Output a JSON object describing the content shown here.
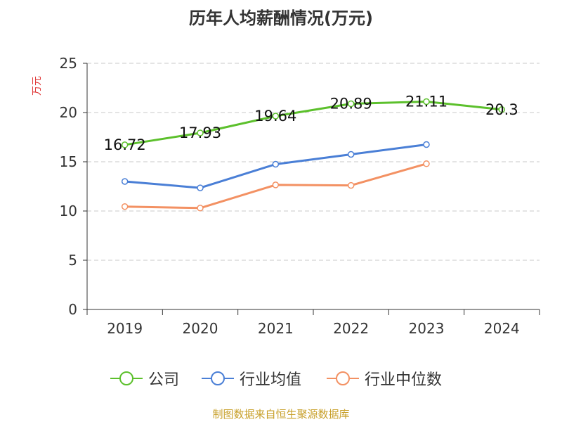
{
  "chart_data": {
    "type": "line",
    "title": "历年人均薪酬情况(万元)",
    "ylabel": "万元",
    "xlabel": "",
    "ylim": [
      0,
      25
    ],
    "yticks": [
      0,
      5,
      10,
      15,
      20,
      25
    ],
    "grid": true,
    "legend_position": "bottom",
    "categories": [
      "2019",
      "2020",
      "2021",
      "2022",
      "2023",
      "2024"
    ],
    "series": [
      {
        "name": "公司",
        "color": "#5cc02c",
        "values": [
          16.72,
          17.93,
          19.64,
          20.89,
          21.11,
          20.3
        ],
        "show_labels": true
      },
      {
        "name": "行业均值",
        "color": "#4a7fd6",
        "values": [
          13.0,
          12.35,
          14.75,
          15.75,
          16.75,
          null
        ],
        "show_labels": false
      },
      {
        "name": "行业中位数",
        "color": "#f39163",
        "values": [
          10.45,
          10.3,
          12.65,
          12.6,
          14.8,
          null
        ],
        "show_labels": false
      }
    ]
  },
  "footer": {
    "source": "制图数据来自恒生聚源数据库"
  }
}
